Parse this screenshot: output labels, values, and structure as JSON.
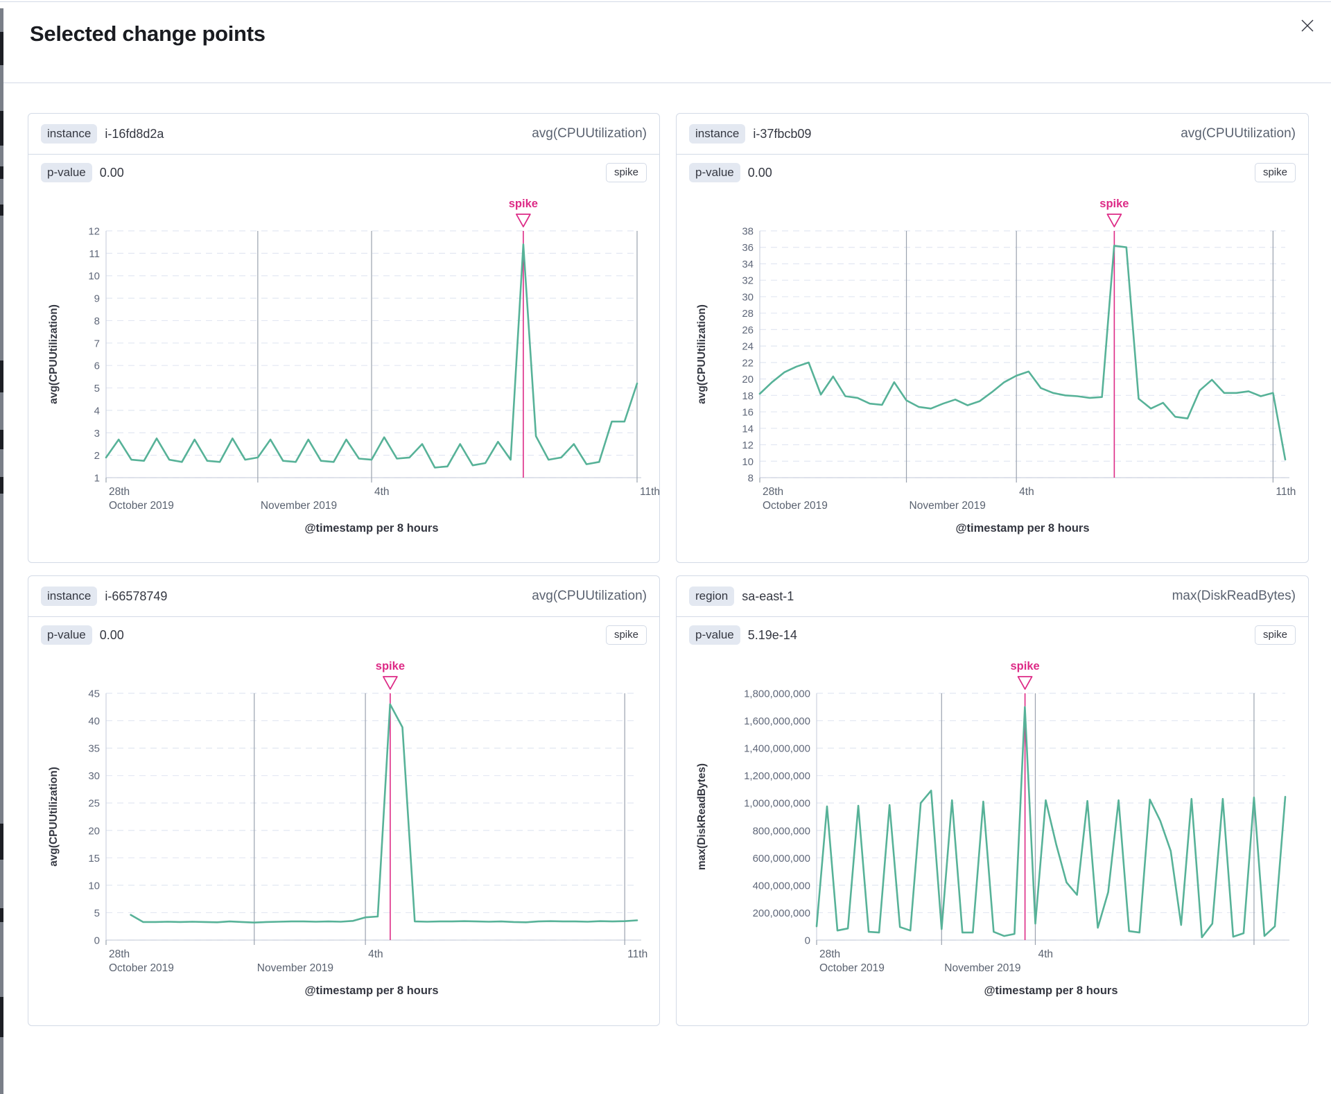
{
  "modal": {
    "title": "Selected change points"
  },
  "colors": {
    "series_green": "#57b298",
    "annotation_pink": "#dd2a86",
    "gridline": "#e2e7f2",
    "axis": "#cdd3de",
    "month_line": "#9aa2ae",
    "tick_text": "#60687a",
    "label_text": "#5a6270"
  },
  "panels": [
    {
      "key_label": "instance",
      "key_value": "i-16fd8d2a",
      "metric_label": "avg(CPUUtilization)",
      "p_label": "p-value",
      "p_value": "0.00",
      "change_type": "spike",
      "chart_data": {
        "type": "line",
        "ylabel": "avg(CPUUtilization)",
        "xlabel": "@timestamp per 8 hours",
        "ylim": [
          1,
          12
        ],
        "y_tick_values": [
          12,
          11,
          10,
          9,
          8,
          7,
          6,
          5,
          4,
          3,
          2,
          1
        ],
        "y_tick_labels": [
          "12",
          "11",
          "10",
          "9",
          "8",
          "7",
          "6",
          "5",
          "4",
          "3",
          "2",
          "1"
        ],
        "x_ticks": [
          {
            "day": 0,
            "line1": "28th",
            "line2": "October 2019"
          },
          {
            "day": 4,
            "line1": "",
            "line2": "November 2019"
          },
          {
            "day": 7,
            "line1": "4th",
            "line2": ""
          },
          {
            "day": 14,
            "line1": "11th",
            "line2": ""
          }
        ],
        "points_per_day": 3,
        "annotation": {
          "label": "spike",
          "day": 11.0
        },
        "y_label_width": 100,
        "values": [
          1.9,
          2.7,
          1.8,
          1.75,
          2.75,
          1.8,
          1.7,
          2.7,
          1.75,
          1.7,
          2.75,
          1.8,
          1.9,
          2.7,
          1.75,
          1.7,
          2.7,
          1.75,
          1.7,
          2.7,
          1.85,
          1.8,
          2.8,
          1.85,
          1.9,
          2.5,
          1.45,
          1.5,
          2.5,
          1.55,
          1.65,
          2.6,
          1.8,
          11.4,
          2.85,
          1.8,
          1.9,
          2.5,
          1.6,
          1.7,
          3.5,
          3.5,
          5.2
        ]
      }
    },
    {
      "key_label": "instance",
      "key_value": "i-37fbcb09",
      "metric_label": "avg(CPUUtilization)",
      "p_label": "p-value",
      "p_value": "0.00",
      "change_type": "spike",
      "chart_data": {
        "type": "line",
        "ylabel": "avg(CPUUtilization)",
        "xlabel": "@timestamp per 8 hours",
        "ylim": [
          8,
          38
        ],
        "y_tick_values": [
          38,
          36,
          34,
          32,
          30,
          28,
          26,
          24,
          22,
          20,
          18,
          16,
          14,
          12,
          10,
          8
        ],
        "y_tick_labels": [
          "38",
          "36",
          "34",
          "32",
          "30",
          "28",
          "26",
          "24",
          "22",
          "20",
          "18",
          "16",
          "14",
          "12",
          "10",
          "8"
        ],
        "x_ticks": [
          {
            "day": 0,
            "line1": "28th",
            "line2": "October 2019"
          },
          {
            "day": 4,
            "line1": "",
            "line2": "November 2019"
          },
          {
            "day": 7,
            "line1": "4th",
            "line2": ""
          },
          {
            "day": 14,
            "line1": "11th",
            "line2": ""
          }
        ],
        "points_per_day": 3,
        "annotation": {
          "label": "spike",
          "day": 9.67
        },
        "y_label_width": 108,
        "values": [
          18.2,
          19.6,
          20.8,
          21.5,
          22.0,
          18.1,
          20.3,
          17.9,
          17.7,
          17.0,
          16.85,
          19.6,
          17.4,
          16.6,
          16.4,
          17.0,
          17.5,
          16.8,
          17.3,
          18.4,
          19.6,
          20.4,
          20.9,
          18.9,
          18.3,
          18.0,
          17.9,
          17.7,
          17.8,
          36.2,
          36.0,
          17.6,
          16.4,
          17.1,
          15.4,
          15.2,
          18.6,
          19.9,
          18.3,
          18.3,
          18.5,
          17.9,
          18.3,
          10.2
        ]
      }
    },
    {
      "key_label": "instance",
      "key_value": "i-66578749",
      "metric_label": "avg(CPUUtilization)",
      "p_label": "p-value",
      "p_value": "0.00",
      "change_type": "spike",
      "chart_data": {
        "type": "line",
        "ylabel": "avg(CPUUtilization)",
        "xlabel": "@timestamp per 8 hours",
        "ylim": [
          0,
          45
        ],
        "y_tick_values": [
          45,
          40,
          35,
          30,
          25,
          20,
          15,
          10,
          5,
          0
        ],
        "y_tick_labels": [
          "45",
          "40",
          "35",
          "30",
          "25",
          "20",
          "15",
          "10",
          "5",
          "0"
        ],
        "x_ticks": [
          {
            "day": 0,
            "line1": "28th",
            "line2": "October 2019"
          },
          {
            "day": 4,
            "line1": "",
            "line2": "November 2019"
          },
          {
            "day": 7,
            "line1": "4th",
            "line2": ""
          },
          {
            "day": 14,
            "line1": "11th",
            "line2": ""
          }
        ],
        "points_per_day": 3,
        "annotation": {
          "label": "spike",
          "day": 7.67
        },
        "y_label_width": 100,
        "values": [
          null,
          null,
          4.6,
          3.3,
          3.3,
          3.35,
          3.3,
          3.35,
          3.3,
          3.25,
          3.4,
          3.3,
          3.2,
          3.3,
          3.35,
          3.4,
          3.4,
          3.35,
          3.4,
          3.35,
          3.5,
          4.15,
          4.3,
          43.0,
          38.8,
          3.4,
          3.35,
          3.4,
          3.4,
          3.45,
          3.4,
          3.35,
          3.4,
          3.3,
          3.25,
          3.4,
          3.45,
          3.4,
          3.4,
          3.35,
          3.45,
          3.4,
          3.45,
          3.6
        ]
      }
    },
    {
      "key_label": "region",
      "key_value": "sa-east-1",
      "metric_label": "max(DiskReadBytes)",
      "p_label": "p-value",
      "p_value": "5.19e-14",
      "change_type": "spike",
      "chart_data": {
        "type": "line",
        "ylabel": "max(DiskReadBytes)",
        "xlabel": "@timestamp per 8 hours",
        "ylim": [
          0,
          1800000000
        ],
        "y_tick_values": [
          1800000000,
          1600000000,
          1400000000,
          1200000000,
          1000000000,
          800000000,
          600000000,
          400000000,
          200000000,
          0
        ],
        "y_tick_labels": [
          "1,800,000,000",
          "1,600,000,000",
          "1,400,000,000",
          "1,200,000,000",
          "1,000,000,000",
          "800,000,000",
          "600,000,000",
          "400,000,000",
          "200,000,000",
          "0"
        ],
        "x_ticks": [
          {
            "day": 0,
            "line1": "28th",
            "line2": "October 2019"
          },
          {
            "day": 4,
            "line1": "",
            "line2": "November 2019"
          },
          {
            "day": 7,
            "line1": "4th",
            "line2": ""
          },
          {
            "day": 14,
            "line1": "",
            "line2": ""
          }
        ],
        "points_per_day": 3,
        "annotation": {
          "label": "spike",
          "day": 6.67
        },
        "y_label_width": 190,
        "values": [
          100000000,
          975000000,
          70000000,
          85000000,
          980000000,
          60000000,
          55000000,
          985000000,
          95000000,
          70000000,
          1000000000,
          1090000000,
          80000000,
          1020000000,
          55000000,
          55000000,
          1010000000,
          60000000,
          30000000,
          45000000,
          1700000000,
          120000000,
          1020000000,
          700000000,
          420000000,
          330000000,
          1015000000,
          90000000,
          350000000,
          1020000000,
          65000000,
          55000000,
          1025000000,
          870000000,
          650000000,
          110000000,
          1030000000,
          20000000,
          120000000,
          1030000000,
          25000000,
          50000000,
          1040000000,
          30000000,
          100000000,
          1045000000
        ]
      }
    }
  ]
}
